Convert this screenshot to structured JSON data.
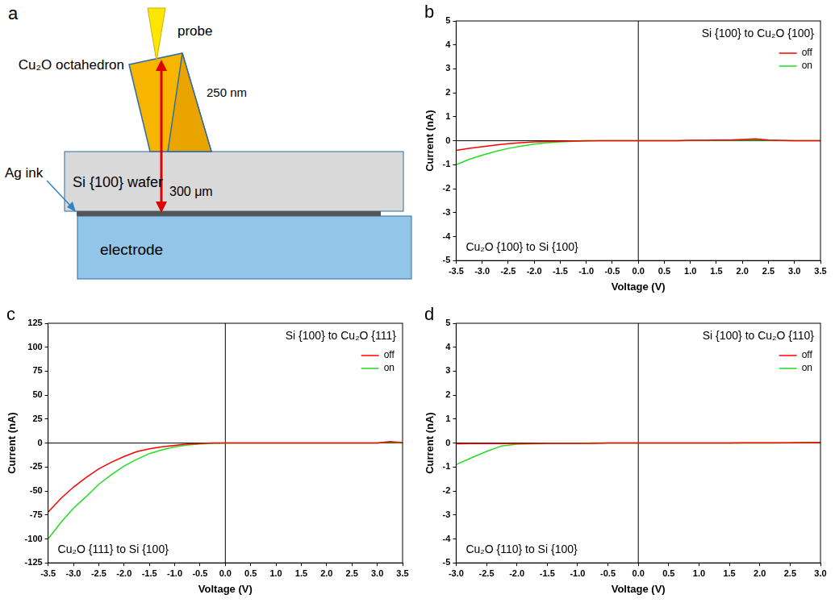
{
  "diagram": {
    "panel_label": "a",
    "probe": "probe",
    "crystal": "Cu₂O octahedron",
    "crystal_size": "250 nm",
    "wafer": "Si {100} wafer",
    "wafer_thickness": "300 μm",
    "ink": "Ag ink",
    "electrode": "electrode"
  },
  "chart_data": [
    {
      "type": "line",
      "panel_label": "b",
      "x_label": "Voltage (V)",
      "y_label": "Current (nA)",
      "annotations": [
        "Si {100} to Cu₂O {100}",
        "Cu₂O {100} to Si {100}"
      ],
      "x": [
        -3.5,
        -3.25,
        -3,
        -2.75,
        -2.5,
        -2.25,
        -2,
        -1.75,
        -1.5,
        -1.25,
        -1,
        -0.75,
        -0.5,
        -0.25,
        0,
        0.25,
        0.5,
        0.75,
        1,
        1.25,
        1.5,
        1.75,
        2,
        2.25,
        2.5,
        2.75,
        3,
        3.25,
        3.5
      ],
      "series": [
        {
          "name": "off",
          "color": "#ff0000",
          "values": [
            -0.4,
            -0.32,
            -0.25,
            -0.18,
            -0.12,
            -0.08,
            -0.05,
            -0.03,
            -0.02,
            -0.01,
            0,
            0,
            0,
            0,
            0,
            0,
            0,
            0,
            0.02,
            0.02,
            0.03,
            0.03,
            0.05,
            0.08,
            0.03,
            0.01,
            0,
            0,
            0
          ]
        },
        {
          "name": "on",
          "color": "#22dd22",
          "values": [
            -1.0,
            -0.78,
            -0.6,
            -0.45,
            -0.32,
            -0.22,
            -0.14,
            -0.08,
            -0.05,
            -0.02,
            -0.01,
            0,
            0,
            0,
            0,
            0,
            0,
            0,
            0.01,
            0.01,
            0.02,
            0.02,
            0.03,
            0.04,
            0.02,
            0.01,
            0,
            0,
            0
          ]
        }
      ],
      "xlim": [
        -3.5,
        3.5
      ],
      "xticks": [
        -3.5,
        {
          "value": -3,
          "label": "-3.0"
        },
        -2.5,
        {
          "value": -2,
          "label": "-2.0"
        },
        -1.5,
        {
          "value": -1,
          "label": "-1.0"
        },
        -0.5,
        {
          "value": 0,
          "label": "0.0"
        },
        0.5,
        {
          "value": 1,
          "label": "1.0"
        },
        1.5,
        {
          "value": 2,
          "label": "2.0"
        },
        2.5,
        {
          "value": 3,
          "label": "3.0"
        },
        3.5
      ],
      "ylim": [
        -5,
        5
      ],
      "yticks": [
        -5,
        -4,
        -3,
        -2,
        -1,
        0,
        1,
        2,
        3,
        4,
        5
      ],
      "grid": false,
      "legend": "upper right"
    },
    {
      "type": "line",
      "panel_label": "c",
      "x_label": "Voltage (V)",
      "y_label": "Current (nA)",
      "annotations": [
        "Si {100} to Cu₂O {111}",
        "Cu₂O {111} to Si {100}"
      ],
      "x": [
        -3.5,
        -3.25,
        -3,
        -2.75,
        -2.5,
        -2.25,
        -2,
        -1.75,
        -1.5,
        -1.25,
        -1,
        -0.75,
        -0.5,
        -0.25,
        0,
        0.25,
        0.5,
        0.75,
        1,
        1.25,
        1.5,
        1.75,
        2,
        2.25,
        2.5,
        2.75,
        3,
        3.25,
        3.5
      ],
      "series": [
        {
          "name": "off",
          "color": "#ff0000",
          "values": [
            -72,
            -58,
            -46,
            -36,
            -27,
            -20,
            -14,
            -9,
            -6,
            -4,
            -2.5,
            -1,
            -0.5,
            0,
            0,
            0,
            0,
            0,
            0,
            0,
            0,
            0,
            0,
            0,
            0,
            0,
            0,
            1.5,
            0.5
          ]
        },
        {
          "name": "on",
          "color": "#22dd22",
          "values": [
            -100,
            -83,
            -68,
            -56,
            -43,
            -33,
            -24,
            -17,
            -11,
            -7,
            -4,
            -2,
            -1,
            -0.3,
            0,
            0,
            0,
            0,
            0,
            0,
            0,
            0,
            0,
            0,
            0,
            0,
            0,
            1,
            0
          ]
        }
      ],
      "xlim": [
        -3.5,
        3.5
      ],
      "xticks": [
        -3.5,
        {
          "value": -3,
          "label": "-3.0"
        },
        -2.5,
        {
          "value": -2,
          "label": "-2.0"
        },
        -1.5,
        {
          "value": -1,
          "label": "-1.0"
        },
        -0.5,
        {
          "value": 0,
          "label": "0.0"
        },
        0.5,
        {
          "value": 1,
          "label": "1.0"
        },
        1.5,
        {
          "value": 2,
          "label": "2.0"
        },
        2.5,
        {
          "value": 3,
          "label": "3.0"
        },
        3.5
      ],
      "ylim": [
        -125,
        125
      ],
      "yticks": [
        -125,
        -100,
        -75,
        -50,
        -25,
        0,
        25,
        50,
        75,
        100,
        125
      ],
      "grid": false,
      "legend": "upper right"
    },
    {
      "type": "line",
      "panel_label": "d",
      "x_label": "Voltage (V)",
      "y_label": "Current (nA)",
      "annotations": [
        "Si {100} to Cu₂O {110}",
        "Cu₂O {110} to Si {100}"
      ],
      "x": [
        -3,
        -2.75,
        -2.5,
        -2.25,
        -2,
        -1.75,
        -1.5,
        -1.25,
        -1,
        -0.75,
        -0.5,
        -0.25,
        0,
        0.25,
        0.5,
        0.75,
        1,
        1.25,
        1.5,
        1.75,
        2,
        2.25,
        2.5,
        2.75,
        3
      ],
      "series": [
        {
          "name": "off",
          "color": "#ff0000",
          "values": [
            -0.03,
            -0.02,
            -0.02,
            -0.02,
            -0.02,
            -0.02,
            -0.01,
            -0.01,
            -0.01,
            -0.01,
            0,
            0,
            0,
            0,
            0,
            0,
            0,
            0,
            0,
            0.01,
            0.01,
            0.01,
            0.01,
            0.02,
            0.02
          ]
        },
        {
          "name": "on",
          "color": "#22dd22",
          "values": [
            -0.9,
            -0.62,
            -0.35,
            -0.12,
            -0.05,
            -0.03,
            -0.02,
            -0.01,
            -0.01,
            0,
            0,
            0,
            0,
            0,
            0,
            0,
            0,
            0,
            0,
            0,
            0,
            0,
            0.01,
            0.02,
            0.03
          ]
        }
      ],
      "xlim": [
        -3,
        3
      ],
      "xticks": [
        {
          "value": -3,
          "label": "-3.0"
        },
        -2.5,
        {
          "value": -2,
          "label": "-2.0"
        },
        -1.5,
        {
          "value": -1,
          "label": "-1.0"
        },
        -0.5,
        {
          "value": 0,
          "label": "0.0"
        },
        0.5,
        {
          "value": 1,
          "label": "1.0"
        },
        1.5,
        {
          "value": 2,
          "label": "2.0"
        },
        2.5,
        {
          "value": 3,
          "label": "3.0"
        }
      ],
      "ylim": [
        -5,
        5
      ],
      "yticks": [
        -5,
        -4,
        -3,
        -2,
        -1,
        0,
        1,
        2,
        3,
        4,
        5
      ],
      "grid": false,
      "legend": "upper right"
    }
  ]
}
